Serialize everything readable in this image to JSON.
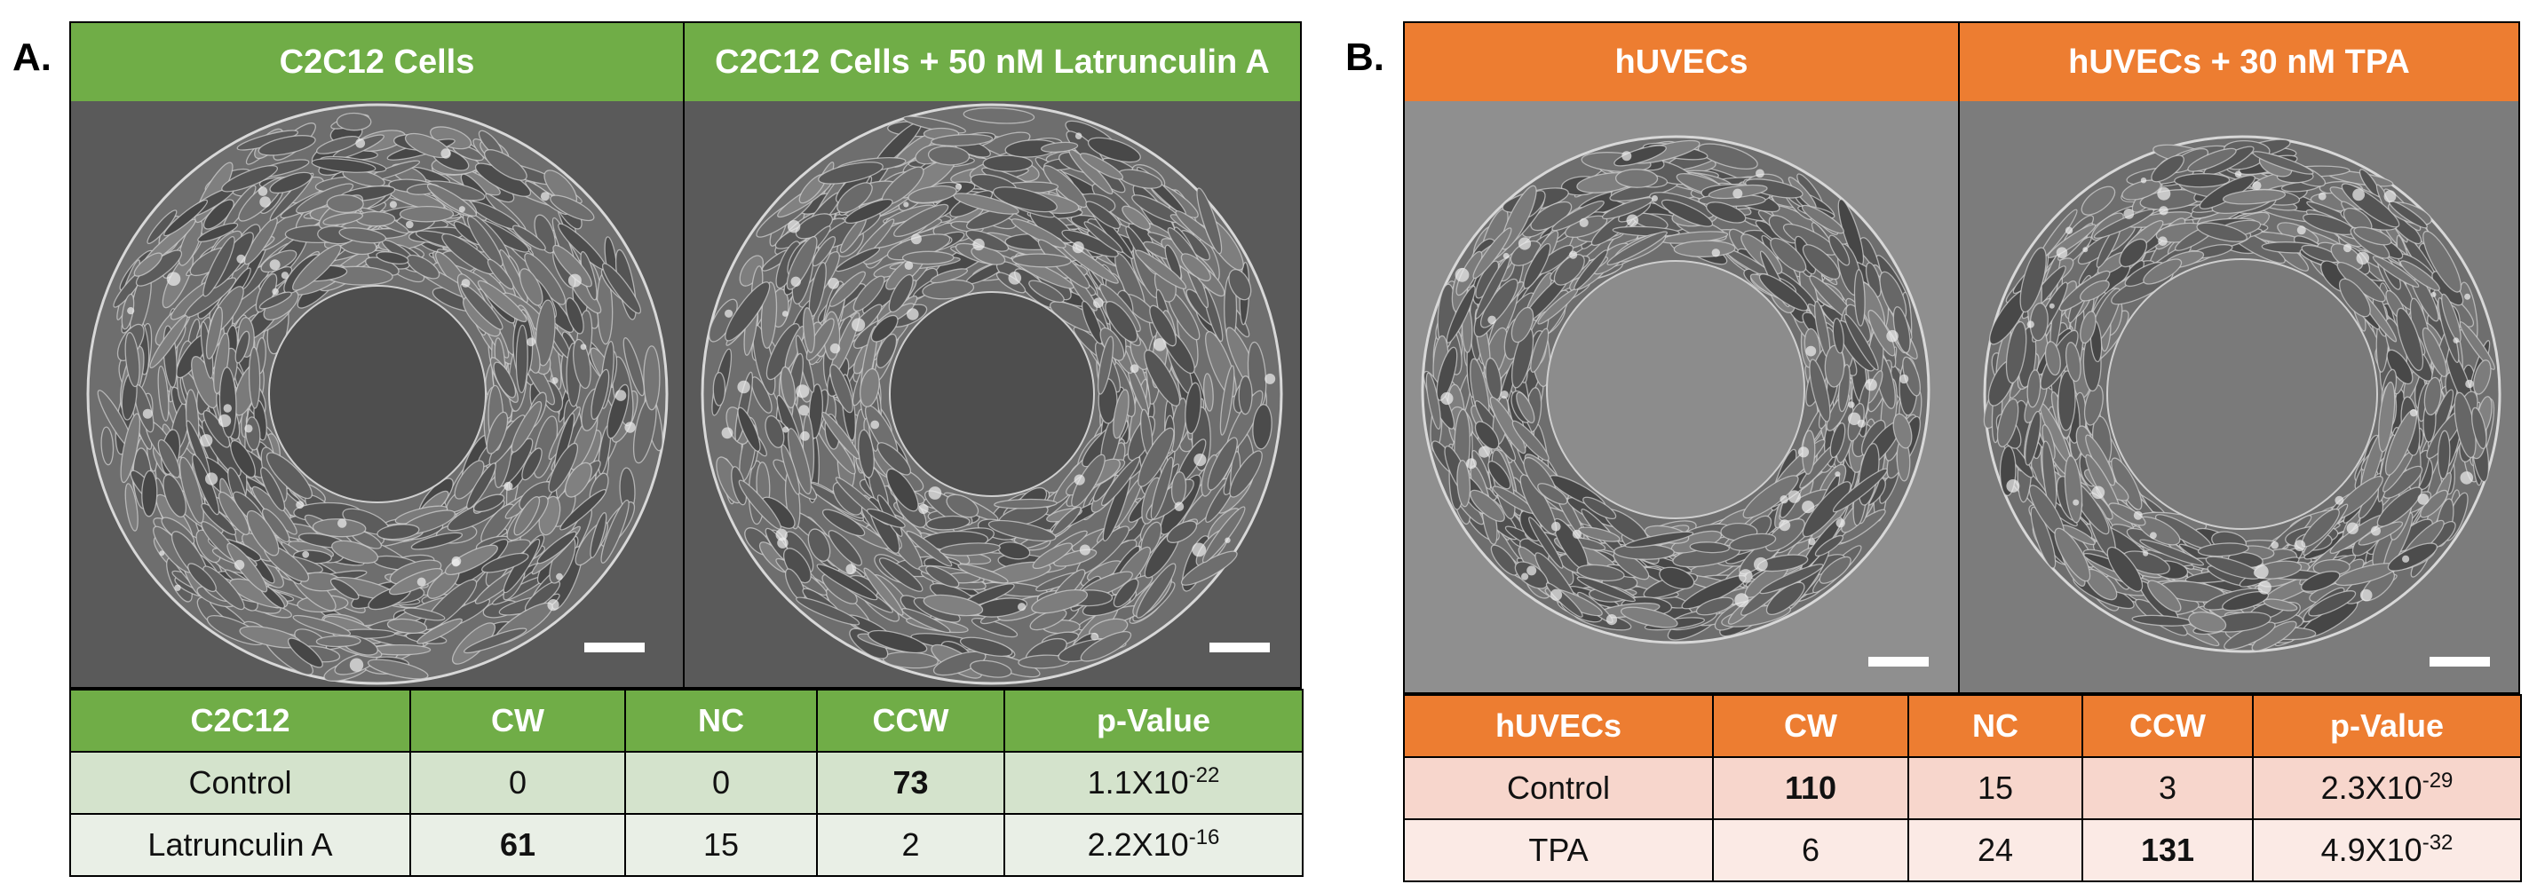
{
  "colors": {
    "panel_a_accent": "#70ad47",
    "panel_a_row1": "#d4e3cc",
    "panel_a_row2": "#e9efe6",
    "panel_b_accent": "#ed7d31",
    "panel_b_row1": "#f7d6cc",
    "panel_b_row2": "#fbeae5",
    "highlight": "#e02020"
  },
  "panel_a": {
    "letter": "A.",
    "headers": [
      "C2C12 Cells",
      "C2C12 Cells + 50 nM Latrunculin A"
    ],
    "table": {
      "columns": [
        "C2C12",
        "CW",
        "NC",
        "CCW",
        "p-Value"
      ],
      "rows": [
        {
          "label": "Control",
          "cw": "0",
          "nc": "0",
          "ccw": "73",
          "p_base": "1.1X10",
          "p_exp": "-22",
          "highlight": "ccw"
        },
        {
          "label": "Latrunculin A",
          "cw": "61",
          "nc": "15",
          "ccw": "2",
          "p_base": "2.2X10",
          "p_exp": "-16",
          "highlight": "cw"
        }
      ]
    }
  },
  "panel_b": {
    "letter": "B.",
    "headers": [
      "hUVECs",
      "hUVECs + 30 nM TPA"
    ],
    "table": {
      "columns": [
        "hUVECs",
        "CW",
        "NC",
        "CCW",
        "p-Value"
      ],
      "rows": [
        {
          "label": "Control",
          "cw": "110",
          "nc": "15",
          "ccw": "3",
          "p_base": "2.3X10",
          "p_exp": "-29",
          "highlight": "cw"
        },
        {
          "label": "TPA",
          "cw": "6",
          "nc": "24",
          "ccw": "131",
          "p_base": "4.9X10",
          "p_exp": "-32",
          "highlight": "ccw"
        }
      ]
    }
  }
}
